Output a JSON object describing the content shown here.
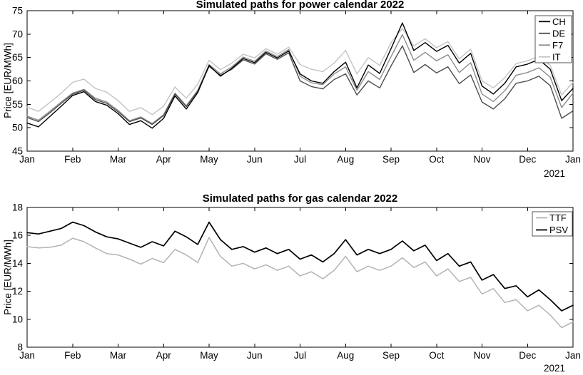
{
  "figure": {
    "background": "#ffffff",
    "axis_color": "#000000",
    "tick_label_color": "#000000",
    "legend_border_color": "#555555"
  },
  "chart_data": [
    {
      "id": "power",
      "type": "line",
      "title": "Simulated paths for power calendar 2022",
      "xlabel": "",
      "ylabel": "Price [EUR/MWh]",
      "x_secondary_label": "2021",
      "x_tick_labels": [
        "Jan",
        "Feb",
        "Mar",
        "Apr",
        "May",
        "Jun",
        "Jul",
        "Aug",
        "Sep",
        "Oct",
        "Nov",
        "Dec",
        "Jan"
      ],
      "xlim": [
        0,
        12
      ],
      "ylim": [
        45,
        75
      ],
      "yticks": [
        45,
        50,
        55,
        60,
        65,
        70,
        75
      ],
      "grid": false,
      "legend_position": "top-right",
      "series": [
        {
          "name": "CH",
          "color": "#000000",
          "width": 1.4,
          "z": 4,
          "values": [
            51.0,
            50.2,
            52.4,
            54.6,
            56.9,
            57.7,
            55.6,
            54.8,
            53.0,
            50.7,
            51.5,
            49.9,
            52.0,
            56.8,
            54.0,
            57.5,
            63.3,
            61.0,
            62.7,
            64.8,
            63.9,
            66.1,
            64.9,
            66.4,
            61.5,
            60.0,
            59.5,
            62.0,
            64.0,
            58.5,
            63.4,
            61.6,
            66.9,
            72.4,
            66.5,
            68.2,
            66.3,
            67.6,
            63.8,
            65.9,
            58.9,
            57.2,
            59.5,
            63.0,
            63.6,
            64.6,
            62.5,
            55.8,
            58.4
          ]
        },
        {
          "name": "DE",
          "color": "#4d4d4d",
          "width": 1.4,
          "z": 3,
          "values": [
            52.2,
            51.3,
            53.2,
            55.2,
            57.2,
            58.0,
            56.0,
            55.2,
            53.4,
            51.3,
            52.1,
            50.7,
            52.6,
            57.2,
            54.5,
            57.8,
            63.1,
            61.2,
            62.5,
            64.5,
            63.6,
            65.8,
            64.6,
            66.0,
            60.0,
            58.8,
            58.3,
            60.3,
            61.5,
            57.0,
            60.0,
            58.5,
            63.2,
            67.5,
            61.8,
            63.5,
            61.7,
            63.0,
            59.4,
            61.3,
            55.5,
            54.0,
            56.2,
            59.5,
            60.0,
            61.0,
            59.0,
            52.0,
            53.6
          ]
        },
        {
          "name": "F7",
          "color": "#8c8c8c",
          "width": 1.4,
          "z": 2,
          "values": [
            52.5,
            51.6,
            53.5,
            55.5,
            57.4,
            58.2,
            56.3,
            55.5,
            53.7,
            51.5,
            52.3,
            50.9,
            52.8,
            57.4,
            54.7,
            58.0,
            63.5,
            61.5,
            63.0,
            65.1,
            64.2,
            66.4,
            65.2,
            66.7,
            61.0,
            59.6,
            59.2,
            61.5,
            63.0,
            58.0,
            62.0,
            60.3,
            65.2,
            69.9,
            64.4,
            66.1,
            64.3,
            65.6,
            61.8,
            63.9,
            57.2,
            55.6,
            57.9,
            61.2,
            61.8,
            62.8,
            60.8,
            54.3,
            57.4
          ]
        },
        {
          "name": "IT",
          "color": "#c4c4c4",
          "width": 1.4,
          "z": 1,
          "values": [
            54.4,
            53.5,
            55.4,
            57.4,
            59.7,
            60.4,
            58.4,
            57.6,
            55.8,
            53.5,
            54.3,
            52.8,
            54.6,
            58.7,
            56.3,
            59.3,
            64.4,
            62.4,
            63.8,
            65.7,
            64.9,
            66.9,
            65.7,
            67.2,
            63.5,
            62.5,
            62.0,
            63.8,
            66.5,
            61.5,
            65.0,
            63.3,
            68.2,
            71.2,
            67.5,
            69.0,
            67.1,
            68.4,
            64.7,
            66.8,
            60.0,
            58.5,
            60.7,
            63.7,
            64.3,
            65.3,
            63.3,
            57.0,
            59.7
          ]
        }
      ]
    },
    {
      "id": "gas",
      "type": "line",
      "title": "Simulated paths for gas calendar 2022",
      "xlabel": "",
      "ylabel": "Price [EUR/MWh]",
      "x_secondary_label": "2021",
      "x_tick_labels": [
        "Jan",
        "Feb",
        "Mar",
        "Apr",
        "May",
        "Jun",
        "Jul",
        "Aug",
        "Sep",
        "Oct",
        "Nov",
        "Dec",
        "Jan"
      ],
      "xlim": [
        0,
        12
      ],
      "ylim": [
        8,
        18
      ],
      "yticks": [
        8,
        10,
        12,
        14,
        16,
        18
      ],
      "grid": false,
      "legend_position": "top-right",
      "series": [
        {
          "name": "TTF",
          "color": "#b3b3b3",
          "width": 1.5,
          "z": 1,
          "values": [
            15.2,
            15.1,
            15.15,
            15.3,
            15.8,
            15.55,
            15.1,
            14.7,
            14.6,
            14.3,
            13.95,
            14.35,
            14.05,
            15.0,
            14.6,
            14.05,
            15.85,
            14.5,
            13.8,
            14.0,
            13.6,
            13.9,
            13.5,
            13.8,
            13.1,
            13.4,
            12.9,
            13.5,
            14.5,
            13.4,
            13.8,
            13.5,
            13.8,
            14.4,
            13.7,
            14.1,
            13.1,
            13.6,
            12.7,
            13.0,
            11.8,
            12.2,
            11.2,
            11.4,
            10.6,
            11.0,
            10.3,
            9.4,
            9.8
          ]
        },
        {
          "name": "PSV",
          "color": "#000000",
          "width": 1.7,
          "z": 2,
          "values": [
            16.2,
            16.1,
            16.3,
            16.5,
            16.95,
            16.7,
            16.25,
            15.9,
            15.75,
            15.45,
            15.15,
            15.55,
            15.25,
            16.3,
            15.9,
            15.35,
            16.95,
            15.7,
            15.0,
            15.2,
            14.8,
            15.1,
            14.7,
            15.0,
            14.3,
            14.6,
            14.1,
            14.7,
            15.7,
            14.6,
            15.0,
            14.7,
            15.0,
            15.6,
            14.9,
            15.3,
            14.2,
            14.7,
            13.8,
            14.1,
            12.8,
            13.2,
            12.2,
            12.4,
            11.6,
            12.1,
            11.4,
            10.6,
            11.0
          ]
        }
      ]
    }
  ]
}
